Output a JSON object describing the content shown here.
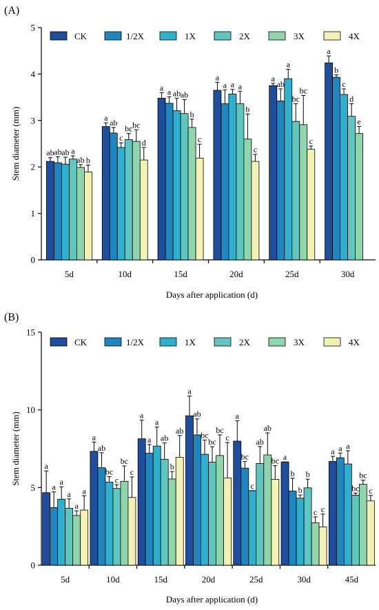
{
  "series_colors": [
    "#1f4e9c",
    "#1f86c0",
    "#2fb0cf",
    "#5ec7c0",
    "#8fd6ad",
    "#f1f2b4"
  ],
  "chart_data": [
    {
      "type": "bar",
      "panel_label": "(A)",
      "xlabel": "Days after application (d)",
      "ylabel": "Stem diameter (mm)",
      "ylim": [
        0,
        5
      ],
      "yticks": [
        "0",
        "1",
        "2",
        "3",
        "4",
        "5"
      ],
      "categories": [
        "5d",
        "10d",
        "15d",
        "20d",
        "25d",
        "30d"
      ],
      "legend_position": "top",
      "series": [
        {
          "name": "CK",
          "values": [
            2.12,
            2.87,
            3.48,
            3.65,
            3.75,
            4.24
          ],
          "errors": [
            0.08,
            0.08,
            0.12,
            0.17,
            0.05,
            0.15
          ],
          "labels": [
            "ab",
            "a",
            "a",
            "a",
            "a",
            "a"
          ]
        },
        {
          "name": "1/2X",
          "values": [
            2.09,
            2.73,
            3.37,
            3.36,
            3.42,
            3.93
          ],
          "errors": [
            0.13,
            0.12,
            0.14,
            0.3,
            0.26,
            0.05
          ],
          "labels": [
            "ab",
            "ab",
            "a",
            "a",
            "ab",
            "b"
          ]
        },
        {
          "name": "1X",
          "values": [
            2.06,
            2.42,
            3.21,
            3.57,
            3.9,
            3.56
          ],
          "errors": [
            0.15,
            0.1,
            0.27,
            0.1,
            0.2,
            0.12
          ],
          "labels": [
            "ab",
            "c",
            "ab",
            "a",
            "a",
            "c"
          ]
        },
        {
          "name": "2X",
          "values": [
            2.17,
            2.59,
            3.15,
            3.36,
            2.98,
            3.09
          ],
          "errors": [
            0.07,
            0.13,
            0.3,
            0.27,
            0.38,
            0.27
          ],
          "labels": [
            "a",
            "bc",
            "ab",
            "a",
            "bc",
            "d"
          ]
        },
        {
          "name": "3X",
          "values": [
            1.99,
            2.55,
            2.85,
            2.6,
            2.91,
            2.72
          ],
          "errors": [
            0.06,
            0.25,
            0.18,
            0.54,
            0.63,
            0.15
          ],
          "labels": [
            "ab",
            "bc",
            "b",
            "b",
            "bc",
            "e"
          ]
        },
        {
          "name": "4X",
          "values": [
            1.89,
            2.15,
            2.19,
            2.12,
            2.38,
            null
          ],
          "errors": [
            0.15,
            0.27,
            0.3,
            0.15,
            0.07,
            null
          ],
          "labels": [
            "b",
            "d",
            "c",
            "c",
            "c",
            ""
          ]
        }
      ]
    },
    {
      "type": "bar",
      "panel_label": "(B)",
      "xlabel": "Days after application (d)",
      "ylabel": "Stem diameter (mm)",
      "ylim": [
        0,
        15
      ],
      "yticks": [
        "0",
        "5",
        "10",
        "15"
      ],
      "categories": [
        "5d",
        "10d",
        "15d",
        "20d",
        "25d",
        "30d",
        "45d"
      ],
      "legend_position": "top",
      "series": [
        {
          "name": "CK",
          "values": [
            4.67,
            7.33,
            8.14,
            9.62,
            7.99,
            6.65,
            6.68
          ],
          "errors": [
            1.4,
            0.6,
            1.2,
            1.27,
            1.31,
            0.0,
            0.33
          ],
          "labels": [
            "a",
            "a",
            "a",
            "a",
            "a",
            "a",
            "a"
          ]
        },
        {
          "name": "1/2X",
          "values": [
            3.71,
            6.28,
            7.21,
            8.39,
            6.25,
            4.78,
            6.92
          ],
          "errors": [
            1.01,
            0.96,
            0.56,
            1.03,
            0.43,
            0.82,
            0.3
          ],
          "labels": [
            "a",
            "ab",
            "a",
            "ab",
            "bc",
            "b",
            "a"
          ]
        },
        {
          "name": "1X",
          "values": [
            4.25,
            5.35,
            7.67,
            7.14,
            4.8,
            4.32,
            6.52
          ],
          "errors": [
            0.8,
            0.35,
            1.23,
            0.92,
            0.0,
            0.2,
            0.85
          ],
          "labels": [
            "a",
            "bc",
            "a",
            "bc",
            "c",
            "b",
            "a"
          ]
        },
        {
          "name": "2X",
          "values": [
            3.67,
            4.94,
            6.82,
            6.64,
            6.55,
            4.98,
            4.51
          ],
          "errors": [
            0.6,
            0.24,
            1.06,
            0.99,
            1.09,
            0.56,
            0.13
          ],
          "labels": [
            "a",
            "c",
            "ab",
            "bc",
            "ab",
            "b",
            "bc"
          ]
        },
        {
          "name": "3X",
          "values": [
            3.2,
            5.4,
            5.55,
            7.06,
            7.1,
            2.73,
            5.21
          ],
          "errors": [
            0.3,
            0.99,
            0.48,
            1.33,
            1.42,
            0.38,
            0.27
          ],
          "labels": [
            "a",
            "bc",
            "b",
            "bc",
            "ab",
            "c",
            "bc"
          ]
        },
        {
          "name": "4X",
          "values": [
            3.55,
            4.36,
            6.95,
            5.62,
            5.53,
            2.46,
            4.14
          ],
          "errors": [
            0.92,
            1.32,
            1.4,
            2.28,
            0.88,
            0.83,
            0.35
          ],
          "labels": [
            "a",
            "c",
            "ab",
            "c",
            "bc",
            "c",
            "c"
          ]
        }
      ]
    }
  ]
}
